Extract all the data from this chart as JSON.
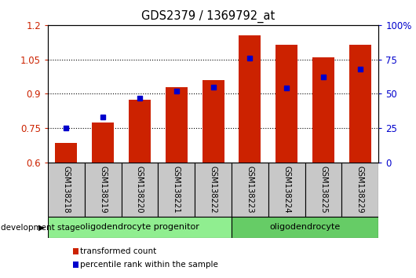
{
  "title": "GDS2379 / 1369792_at",
  "samples": [
    "GSM138218",
    "GSM138219",
    "GSM138220",
    "GSM138221",
    "GSM138222",
    "GSM138223",
    "GSM138224",
    "GSM138225",
    "GSM138229"
  ],
  "transformed_counts": [
    0.685,
    0.775,
    0.875,
    0.93,
    0.96,
    1.155,
    1.115,
    1.06,
    1.115
  ],
  "percentile_ranks": [
    25,
    33,
    47,
    52,
    55,
    76,
    54,
    62,
    68
  ],
  "ylim_left": [
    0.6,
    1.2
  ],
  "ylim_right": [
    0,
    100
  ],
  "yticks_left": [
    0.6,
    0.75,
    0.9,
    1.05,
    1.2
  ],
  "ytick_labels_left": [
    "0.6",
    "0.75",
    "0.9",
    "1.05",
    "1.2"
  ],
  "yticks_right": [
    0,
    25,
    50,
    75,
    100
  ],
  "ytick_labels_right": [
    "0",
    "25",
    "50",
    "75",
    "100%"
  ],
  "bar_color": "#cc2200",
  "dot_color": "#0000cc",
  "groups": [
    {
      "label": "oligodendrocyte progenitor",
      "indices": [
        0,
        1,
        2,
        3,
        4
      ],
      "color": "#90ee90"
    },
    {
      "label": "oligodendrocyte",
      "indices": [
        5,
        6,
        7,
        8
      ],
      "color": "#66cc66"
    }
  ],
  "stage_label": "development stage",
  "legend_items": [
    {
      "color": "#cc2200",
      "label": "transformed count"
    },
    {
      "color": "#0000cc",
      "label": "percentile rank within the sample"
    }
  ],
  "tick_area_color": "#c8c8c8",
  "tick_label_color_left": "#cc2200",
  "tick_label_color_right": "#0000cc"
}
